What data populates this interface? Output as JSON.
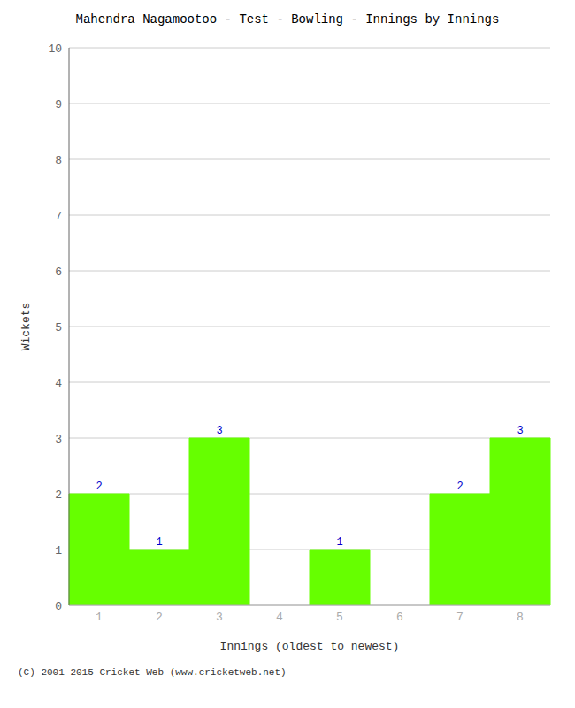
{
  "chart_data": {
    "type": "bar",
    "title": "Mahendra Nagamootoo - Test - Bowling - Innings by Innings",
    "xlabel": "Innings (oldest to newest)",
    "ylabel": "Wickets",
    "categories": [
      "1",
      "2",
      "3",
      "4",
      "5",
      "6",
      "7",
      "8"
    ],
    "values": [
      2,
      1,
      3,
      0,
      1,
      0,
      2,
      3
    ],
    "color": "#66ff00",
    "ylim": [
      0,
      10
    ],
    "yticks": [
      0,
      1,
      2,
      3,
      4,
      5,
      6,
      7,
      8,
      9,
      10
    ],
    "grid": true,
    "data_labels": true,
    "annotations": [
      "(C) 2001-2015 Cricket Web (www.cricketweb.net)"
    ]
  }
}
